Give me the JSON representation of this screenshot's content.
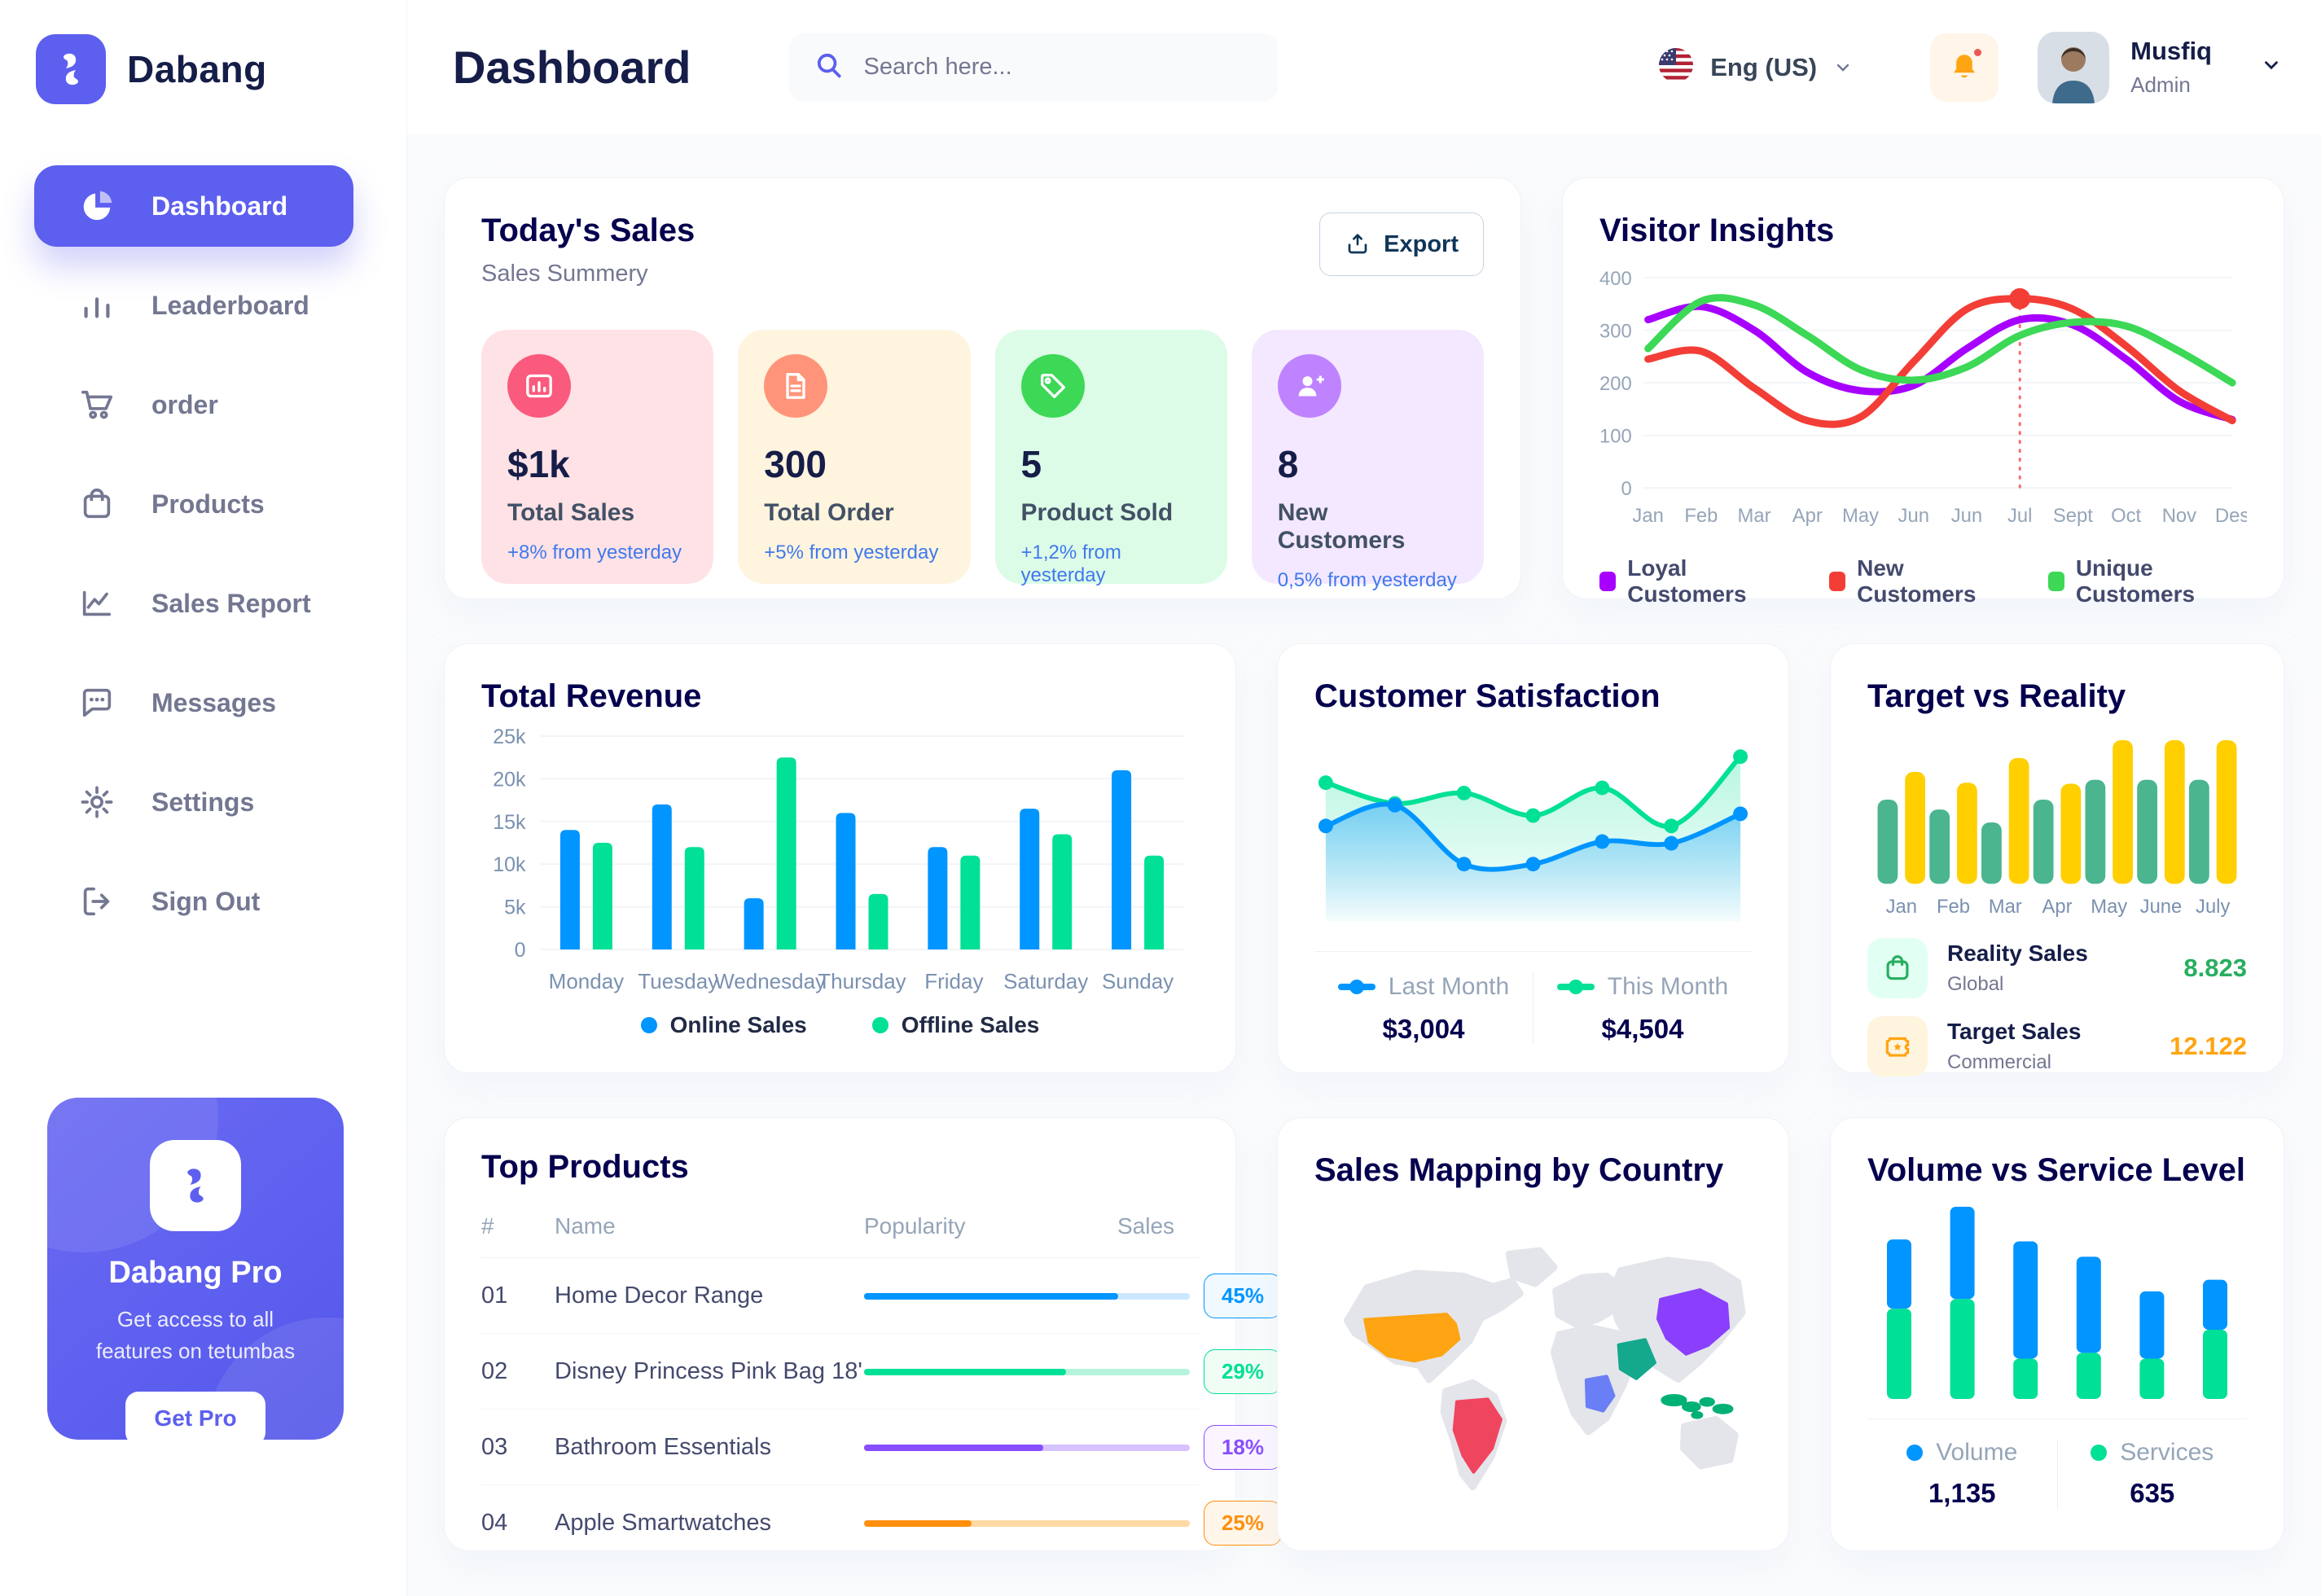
{
  "brand": {
    "name": "Dabang"
  },
  "header": {
    "title": "Dashboard",
    "search_placeholder": "Search here...",
    "language": "Eng (US)",
    "user": {
      "name": "Musfiq",
      "role": "Admin"
    }
  },
  "sidebar": {
    "items": [
      {
        "label": "Dashboard"
      },
      {
        "label": "Leaderboard"
      },
      {
        "label": "order"
      },
      {
        "label": "Products"
      },
      {
        "label": "Sales Report"
      },
      {
        "label": "Messages"
      },
      {
        "label": "Settings"
      },
      {
        "label": "Sign Out"
      }
    ],
    "pro": {
      "title": "Dabang Pro",
      "description": "Get access to all features on tetumbas",
      "button": "Get Pro"
    }
  },
  "todays_sales": {
    "title": "Today's Sales",
    "subtitle": "Sales Summery",
    "export_label": "Export",
    "cards": [
      {
        "value": "$1k",
        "label": "Total Sales",
        "delta": "+8% from yesterday",
        "bg": "#FFE2E5",
        "icon_bg": "#FA5A7D",
        "icon": "chart-icon",
        "delta_color": "#4079ED"
      },
      {
        "value": "300",
        "label": "Total Order",
        "delta": "+5% from yesterday",
        "bg": "#FFF4DE",
        "icon_bg": "#FF947A",
        "icon": "file-icon",
        "delta_color": "#4079ED"
      },
      {
        "value": "5",
        "label": "Product Sold",
        "delta": "+1,2% from yesterday",
        "bg": "#DCFCE7",
        "icon_bg": "#3CD856",
        "icon": "tag-icon",
        "delta_color": "#4079ED"
      },
      {
        "value": "8",
        "label": "New Customers",
        "delta": "0,5% from yesterday",
        "bg": "#F3E8FF",
        "icon_bg": "#BF83FF",
        "icon": "user-plus-icon",
        "delta_color": "#4079ED"
      }
    ]
  },
  "chart_data": [
    {
      "id": "visitor_insights",
      "type": "line",
      "title": "Visitor Insights",
      "categories": [
        "Jan",
        "Feb",
        "Mar",
        "Apr",
        "May",
        "Jun",
        "Jun",
        "Jul",
        "Sept",
        "Oct",
        "Nov",
        "Des"
      ],
      "ylim": [
        0,
        400
      ],
      "yticks": [
        0,
        100,
        200,
        300,
        400
      ],
      "ytick_labels": [
        "0",
        "100",
        "200",
        "300",
        "400"
      ],
      "grid": true,
      "legend_position": "bottom",
      "series": [
        {
          "name": "Loyal Customers",
          "color": "#A700FF",
          "values": [
            320,
            345,
            300,
            220,
            185,
            195,
            265,
            320,
            310,
            245,
            165,
            130
          ]
        },
        {
          "name": "New Customers",
          "color": "#F23E36",
          "values": [
            245,
            260,
            190,
            128,
            135,
            240,
            340,
            360,
            340,
            270,
            185,
            128
          ]
        },
        {
          "name": "Unique Customers",
          "color": "#3CD856",
          "values": [
            265,
            355,
            348,
            290,
            225,
            205,
            230,
            290,
            315,
            308,
            260,
            200
          ]
        }
      ],
      "annotation": {
        "x_index": 7,
        "x_label": "Jul",
        "marker_series": "New Customers",
        "marker_value": 360,
        "line_color": "#F23E36"
      }
    },
    {
      "id": "total_revenue",
      "type": "bar",
      "title": "Total Revenue",
      "categories": [
        "Monday",
        "Tuesday",
        "Wednesday",
        "Thursday",
        "Friday",
        "Saturday",
        "Sunday"
      ],
      "ylim": [
        0,
        25000
      ],
      "yticks": [
        0,
        5000,
        10000,
        15000,
        20000,
        25000
      ],
      "ytick_labels": [
        "0",
        "5k",
        "10k",
        "15k",
        "20k",
        "25k"
      ],
      "grid": true,
      "legend_position": "bottom",
      "series": [
        {
          "name": "Online Sales",
          "color": "#0095FF",
          "values": [
            14000,
            17000,
            6000,
            16000,
            12000,
            16500,
            21000
          ]
        },
        {
          "name": "Offline Sales",
          "color": "#00E096",
          "values": [
            12500,
            12000,
            22500,
            6500,
            11000,
            13500,
            11000
          ]
        }
      ]
    },
    {
      "id": "customer_satisfaction",
      "type": "area",
      "title": "Customer Satisfaction",
      "x_count": 7,
      "ylim": [
        0,
        100
      ],
      "legend_position": "bottom",
      "series": [
        {
          "name": "Last Month",
          "color": "#0095FF",
          "total": "$3,004",
          "values": [
            55,
            67,
            33,
            33,
            46,
            45,
            62
          ]
        },
        {
          "name": "This Month",
          "color": "#00E096",
          "total": "$4,504",
          "values": [
            80,
            68,
            74,
            61,
            77,
            55,
            95
          ]
        }
      ]
    },
    {
      "id": "target_vs_reality",
      "type": "bar",
      "title": "Target vs Reality",
      "categories": [
        "Jan",
        "Feb",
        "Mar",
        "Apr",
        "May",
        "June",
        "July"
      ],
      "ylim": [
        0,
        15
      ],
      "grid": false,
      "series": [
        {
          "name": "Reality Sales",
          "color": "#4AB58E",
          "values": [
            8.5,
            7.5,
            6.2,
            8.5,
            10.5,
            10.5,
            10.5
          ]
        },
        {
          "name": "Target Sales",
          "color": "#FFCF00",
          "values": [
            11.3,
            10.2,
            12.7,
            10.1,
            14.5,
            14.5,
            14.5
          ]
        }
      ],
      "legend": [
        {
          "name": "Reality Sales",
          "subtitle": "Global",
          "value": "8.823",
          "value_color": "#27AE60",
          "icon": "bag-icon",
          "icon_bg": "#E2FFF3",
          "icon_color": "#27AE60"
        },
        {
          "name": "Target Sales",
          "subtitle": "Commercial",
          "value": "12.122",
          "value_color": "#FFA412",
          "icon": "ticket-icon",
          "icon_bg": "#FFF4DE",
          "icon_color": "#FFA412"
        }
      ]
    },
    {
      "id": "top_products",
      "type": "table",
      "title": "Top Products",
      "columns": [
        "#",
        "Name",
        "Popularity",
        "Sales"
      ],
      "rows": [
        {
          "num": "01",
          "name": "Home Decor Range",
          "popularity": 78,
          "sales": "45%",
          "color": "#0095FF",
          "track": "#CDE7FF",
          "badge_bg": "#F0F9FF"
        },
        {
          "num": "02",
          "name": "Disney Princess Pink Bag 18'",
          "popularity": 62,
          "sales": "29%",
          "color": "#00E096",
          "track": "#B5F3DB",
          "badge_bg": "#F0FDF4"
        },
        {
          "num": "03",
          "name": "Bathroom Essentials",
          "popularity": 55,
          "sales": "18%",
          "color": "#884DFF",
          "track": "#D6C2FF",
          "badge_bg": "#FBF5FF"
        },
        {
          "num": "04",
          "name": "Apple Smartwatches",
          "popularity": 33,
          "sales": "25%",
          "color": "#FF8F0D",
          "track": "#FFD9A3",
          "badge_bg": "#FFF6EA"
        }
      ]
    },
    {
      "id": "volume_service",
      "type": "stacked-bar",
      "title": "Volume vs Service Level",
      "legend_position": "bottom",
      "series": [
        {
          "name": "Volume",
          "color": "#0095FF",
          "total": "1,135",
          "values": [
            36,
            48,
            61,
            50,
            35,
            26
          ]
        },
        {
          "name": "Services",
          "color": "#00E096",
          "total": "635",
          "values": [
            47,
            52,
            21,
            24,
            21,
            36
          ]
        }
      ]
    }
  ],
  "sales_mapping": {
    "title": "Sales Mapping by Country",
    "countries": [
      {
        "name": "United States",
        "color": "#FFA412"
      },
      {
        "name": "Brazil",
        "color": "#F0455F"
      },
      {
        "name": "DR Congo",
        "color": "#6A7FF5"
      },
      {
        "name": "Saudi Arabia",
        "color": "#14A88C"
      },
      {
        "name": "China",
        "color": "#8A3FFC"
      },
      {
        "name": "Indonesia",
        "color": "#00B074"
      }
    ]
  }
}
